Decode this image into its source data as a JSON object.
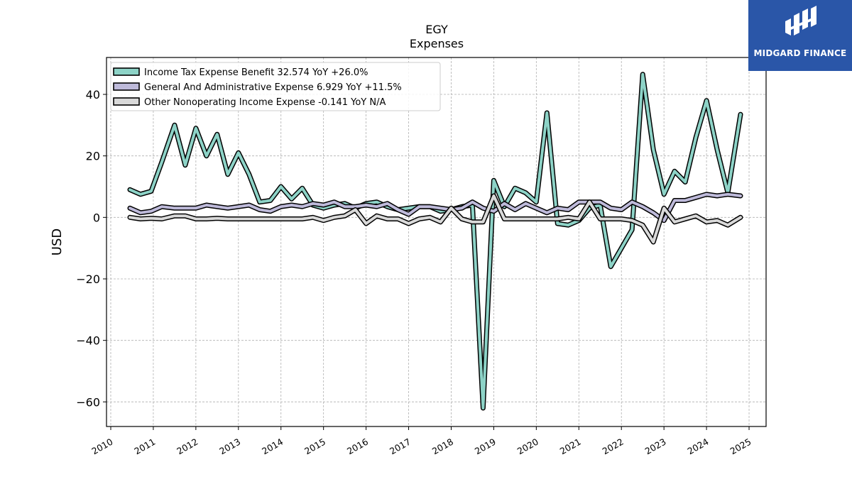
{
  "chart_data": {
    "type": "line",
    "title": "EGY",
    "subtitle": "Expenses",
    "xlabel": "",
    "ylabel": "USD",
    "xlim": [
      2009.9,
      2025.4
    ],
    "ylim": [
      -68,
      52
    ],
    "xticks": [
      "2010",
      "2011",
      "2012",
      "2013",
      "2014",
      "2015",
      "2016",
      "2017",
      "2018",
      "2019",
      "2020",
      "2021",
      "2022",
      "2023",
      "2024",
      "2025"
    ],
    "yticks": [
      -60,
      -40,
      -20,
      0,
      20,
      40
    ],
    "ytick_labels": [
      "−60",
      "−40",
      "−20",
      "0",
      "20",
      "40"
    ],
    "grid": true,
    "legend_position": "top-left",
    "series": [
      {
        "name": "Income Tax Expense Benefit",
        "legend_label": "Income Tax Expense Benefit  32.574 YoY +26.0%",
        "color": "#8dd3c7",
        "x": [
          2010.45,
          2010.7,
          2010.95,
          2011.2,
          2011.5,
          2011.75,
          2012.0,
          2012.25,
          2012.5,
          2012.75,
          2013.0,
          2013.25,
          2013.5,
          2013.75,
          2014.0,
          2014.25,
          2014.5,
          2014.75,
          2015.0,
          2015.25,
          2015.5,
          2015.75,
          2016.0,
          2016.25,
          2016.5,
          2016.75,
          2017.0,
          2017.25,
          2017.5,
          2017.75,
          2018.0,
          2018.25,
          2018.5,
          2018.75,
          2019.0,
          2019.25,
          2019.5,
          2019.75,
          2020.0,
          2020.25,
          2020.5,
          2020.75,
          2021.0,
          2021.25,
          2021.5,
          2021.75,
          2022.0,
          2022.25,
          2022.5,
          2022.75,
          2023.0,
          2023.25,
          2023.5,
          2023.75,
          2024.0,
          2024.25,
          2024.5,
          2024.8
        ],
        "y": [
          9,
          7.5,
          8.5,
          18,
          30,
          17,
          29,
          20,
          27,
          14,
          21,
          14,
          5,
          5.5,
          10,
          6,
          9.5,
          4,
          3,
          4,
          4.5,
          3,
          4.5,
          5,
          3.5,
          2.5,
          3,
          3.5,
          3.5,
          2,
          2.5,
          3.5,
          4,
          -62,
          12,
          3.5,
          9.5,
          8,
          5,
          34,
          -2,
          -2.5,
          -1,
          3,
          4,
          -16,
          -10,
          -4,
          46.5,
          22,
          7.5,
          15,
          11.5,
          26,
          38,
          22,
          8,
          33.5
        ]
      },
      {
        "name": "General And Administrative Expense",
        "legend_label": "General And Administrative Expense  6.929 YoY +11.5%",
        "color": "#bebada",
        "x": [
          2010.45,
          2010.7,
          2010.95,
          2011.2,
          2011.5,
          2011.75,
          2012.0,
          2012.25,
          2012.5,
          2012.75,
          2013.0,
          2013.25,
          2013.5,
          2013.75,
          2014.0,
          2014.25,
          2014.5,
          2014.75,
          2015.0,
          2015.25,
          2015.5,
          2015.75,
          2016.0,
          2016.25,
          2016.5,
          2016.75,
          2017.0,
          2017.25,
          2017.5,
          2017.75,
          2018.0,
          2018.25,
          2018.5,
          2018.75,
          2019.0,
          2019.25,
          2019.5,
          2019.75,
          2020.0,
          2020.25,
          2020.5,
          2020.75,
          2021.0,
          2021.25,
          2021.5,
          2021.75,
          2022.0,
          2022.25,
          2022.5,
          2022.75,
          2023.0,
          2023.25,
          2023.5,
          2023.75,
          2024.0,
          2024.25,
          2024.5,
          2024.8
        ],
        "y": [
          3,
          1.5,
          2,
          3.5,
          3,
          3,
          3,
          4,
          3.5,
          3,
          3.5,
          4,
          2.5,
          2,
          3.5,
          4,
          3.5,
          4.5,
          4,
          5,
          3.5,
          3.5,
          4,
          3.5,
          4.5,
          2.5,
          1,
          3.5,
          3.5,
          3,
          2.5,
          3,
          5,
          3,
          2,
          4.5,
          2.5,
          4.5,
          3,
          1.5,
          3,
          2.5,
          5,
          5,
          5,
          3,
          2.5,
          5,
          3.5,
          1.5,
          -1,
          5.5,
          5.5,
          6.5,
          7.5,
          7,
          7.5,
          7
        ]
      },
      {
        "name": "Other Nonoperating Income Expense",
        "legend_label": "Other Nonoperating Income Expense  -0.141 YoY N/A",
        "color": "#d9d9d9",
        "x": [
          2010.45,
          2010.7,
          2010.95,
          2011.2,
          2011.5,
          2011.75,
          2012.0,
          2012.25,
          2012.5,
          2012.75,
          2013.0,
          2013.25,
          2013.5,
          2013.75,
          2014.0,
          2014.25,
          2014.5,
          2014.75,
          2015.0,
          2015.25,
          2015.5,
          2015.75,
          2016.0,
          2016.25,
          2016.5,
          2016.75,
          2017.0,
          2017.25,
          2017.5,
          2017.75,
          2018.0,
          2018.25,
          2018.5,
          2018.75,
          2019.0,
          2019.25,
          2019.5,
          2019.75,
          2020.0,
          2020.25,
          2020.5,
          2020.75,
          2021.0,
          2021.25,
          2021.5,
          2021.75,
          2022.0,
          2022.25,
          2022.5,
          2022.75,
          2023.0,
          2023.25,
          2023.5,
          2023.75,
          2024.0,
          2024.25,
          2024.5,
          2024.8
        ],
        "y": [
          0,
          -0.5,
          -0.3,
          -0.5,
          0.5,
          0.5,
          -0.5,
          -0.5,
          -0.3,
          -0.5,
          -0.5,
          -0.5,
          -0.5,
          -0.5,
          -0.5,
          -0.5,
          -0.5,
          0,
          -1,
          0,
          0.5,
          2.5,
          -2,
          0.5,
          -0.5,
          -0.5,
          -2,
          -0.5,
          0,
          -1.5,
          3,
          -0.5,
          -1.5,
          -1.5,
          7,
          -0.5,
          -0.5,
          -0.5,
          -0.5,
          -0.5,
          -0.5,
          0,
          -0.5,
          5,
          -0.5,
          -0.5,
          -0.5,
          -1,
          -2.5,
          -8,
          3,
          -1.5,
          -0.5,
          0.5,
          -1.5,
          -1,
          -2.5,
          0
        ]
      }
    ]
  },
  "logo": {
    "text": "MIDGARD FINANCE",
    "color": "#2a56a8"
  }
}
